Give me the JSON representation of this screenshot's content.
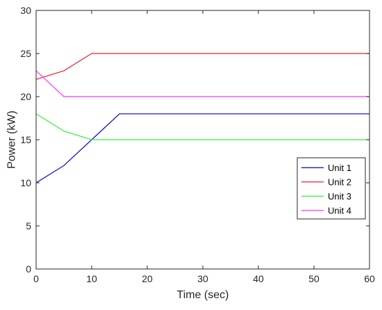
{
  "chart_data": {
    "type": "line",
    "title": "",
    "xlabel": "Time (sec)",
    "ylabel": "Power (kW)",
    "xlim": [
      0,
      60
    ],
    "ylim": [
      0,
      30
    ],
    "xticks": [
      "0",
      "10",
      "20",
      "30",
      "40",
      "50",
      "60"
    ],
    "yticks": [
      "0",
      "5",
      "10",
      "15",
      "20",
      "25",
      "30"
    ],
    "grid": false,
    "legend_position": "lower-right",
    "series": [
      {
        "name": "Unit 1",
        "color": "#0000cc",
        "x": [
          0,
          5,
          10,
          15,
          60
        ],
        "y": [
          10,
          12,
          15,
          18,
          18
        ]
      },
      {
        "name": "Unit 2",
        "color": "#e8202a",
        "x": [
          0,
          5,
          10,
          60
        ],
        "y": [
          22,
          23,
          25,
          25
        ]
      },
      {
        "name": "Unit 3",
        "color": "#33ee33",
        "x": [
          0,
          5,
          10,
          60
        ],
        "y": [
          18,
          16,
          15,
          15
        ]
      },
      {
        "name": "Unit 4",
        "color": "#ff33ff",
        "x": [
          0,
          5,
          60
        ],
        "y": [
          23,
          20,
          20
        ]
      }
    ]
  }
}
